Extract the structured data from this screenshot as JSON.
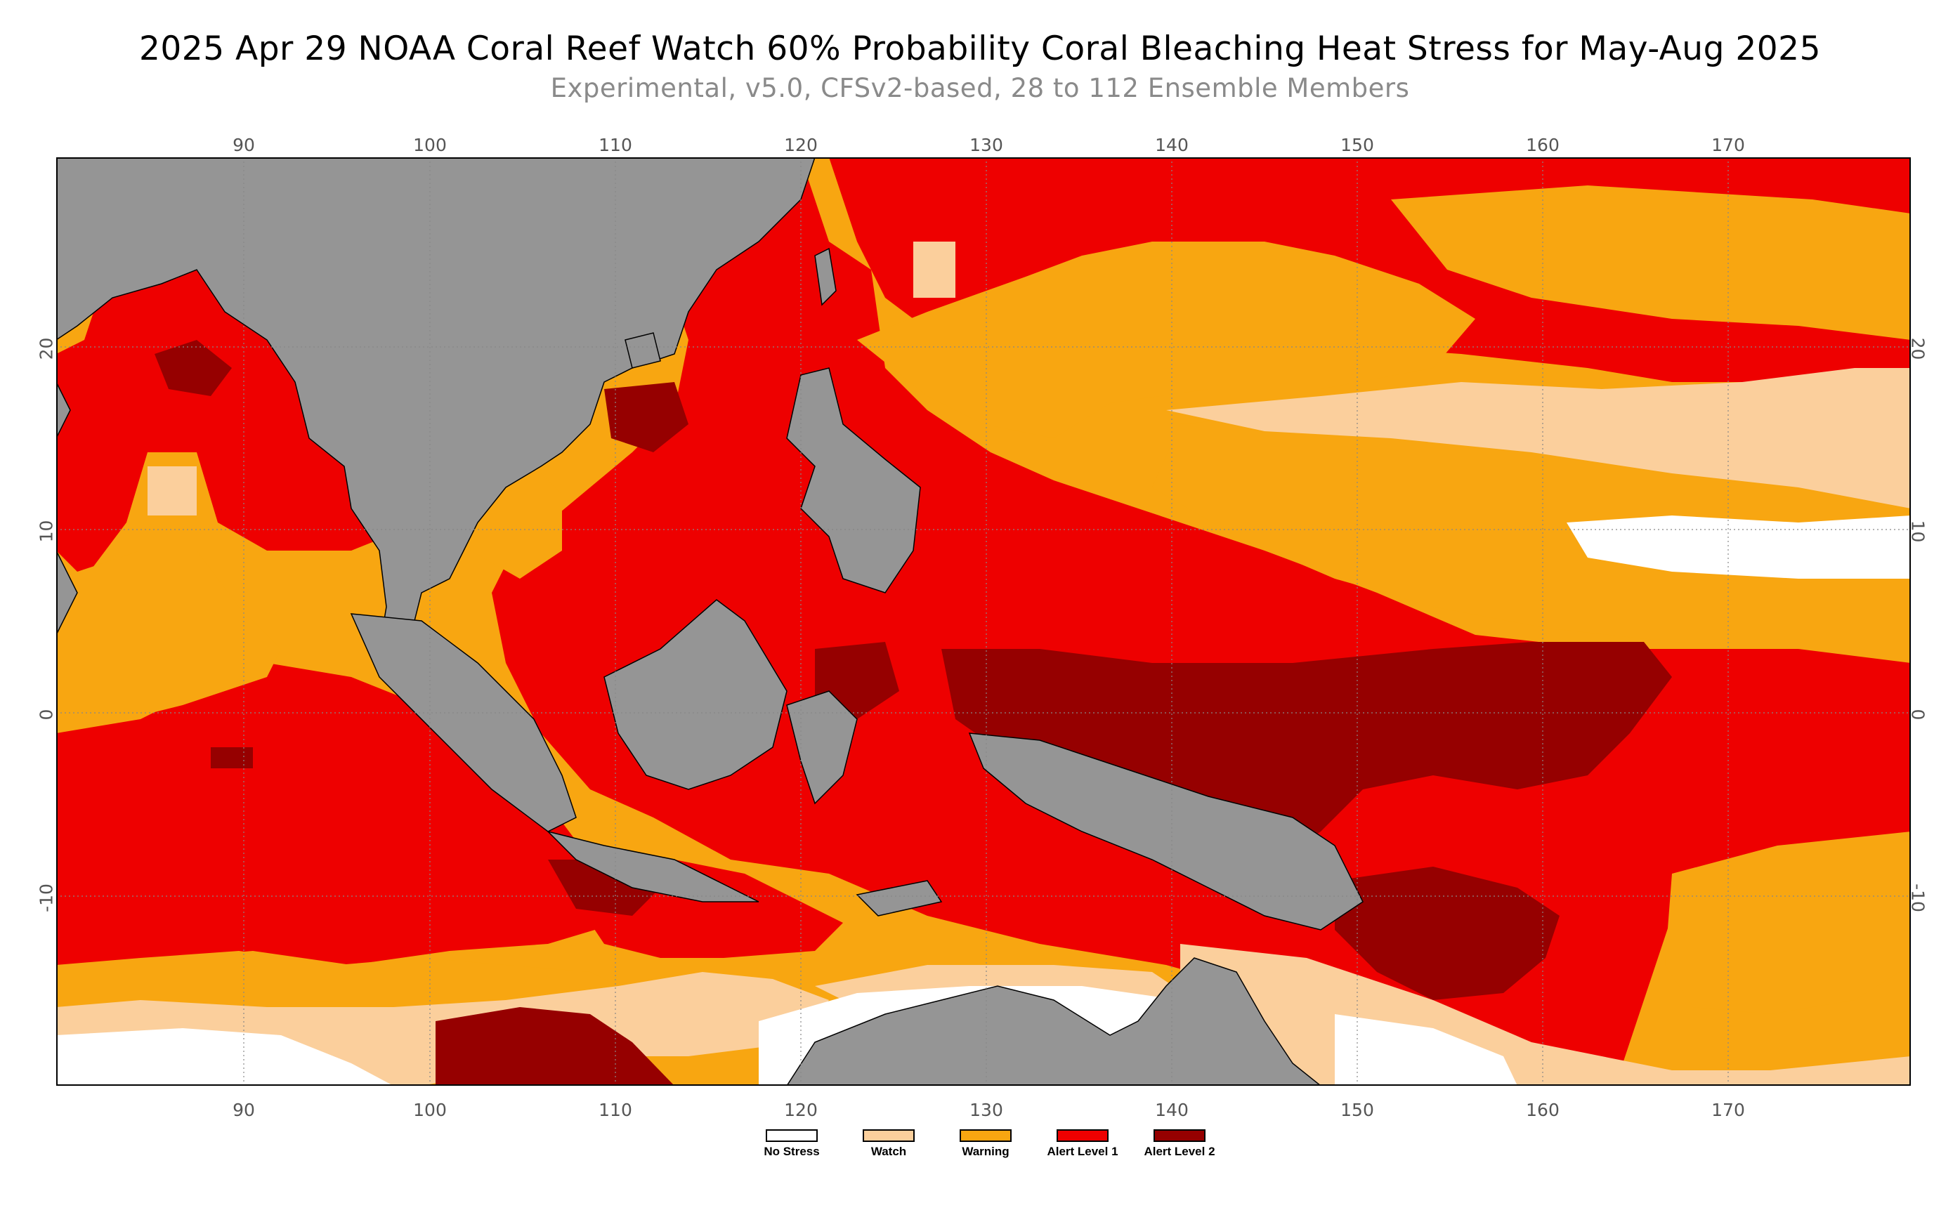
{
  "title": "2025 Apr 29 NOAA Coral Reef Watch 60% Probability Coral Bleaching Heat Stress for May-Aug 2025",
  "subtitle": "Experimental, v5.0, CFSv2-based, 28 to 112 Ensemble Members",
  "axes": {
    "lon_range": [
      80,
      180
    ],
    "lat_range": [
      -20,
      30
    ],
    "lon_ticks": [
      "90",
      "100",
      "110",
      "120",
      "130",
      "140",
      "150",
      "160",
      "170"
    ],
    "lat_ticks": [
      "20",
      "10",
      "0",
      "-10"
    ]
  },
  "colors": {
    "land": "#959595",
    "no_stress": "#ffffff",
    "watch": "#fbcf9c",
    "warning": "#f8a611",
    "alert1": "#ee0000",
    "alert2": "#960000",
    "grid": "#888888",
    "frame": "#000000"
  },
  "legend": [
    {
      "label": "No Stress",
      "color": "#ffffff"
    },
    {
      "label": "Watch",
      "color": "#fbcf9c"
    },
    {
      "label": "Warning",
      "color": "#f8a611"
    },
    {
      "label": "Alert Level 1",
      "color": "#ee0000"
    },
    {
      "label": "Alert Level 2",
      "color": "#960000"
    }
  ]
}
